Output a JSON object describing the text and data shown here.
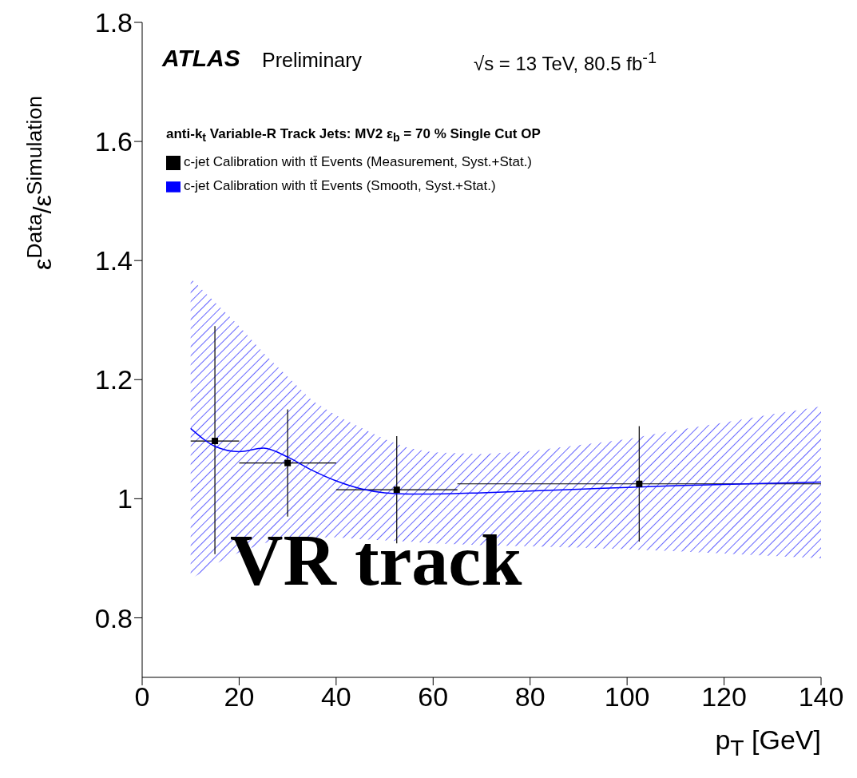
{
  "chart_data": {
    "type": "scatter",
    "xlabel": "p$_{T}$ [GeV]",
    "ylabel": "ε$^{Data}$/ε$^{Simulation}$",
    "legend_title": "anti-k$_{t}$ Variable-R Track Jets: MV2  ε$_{b}$ = 70 % Single Cut OP",
    "legend": "top left",
    "xlim": [
      0,
      140
    ],
    "xticks": [
      0,
      20,
      40,
      60,
      80,
      100,
      120,
      140
    ],
    "ylim": [
      0.7,
      1.8
    ],
    "yticks": [
      0.8,
      1,
      1.2,
      1.4,
      1.6,
      1.8
    ],
    "annotations": [
      "ATLAS",
      "Preliminary",
      "√s = 13 TeV, 80.5 fb$^{-1}$",
      "VR track"
    ],
    "series": [
      {
        "name": "c-jet Calibration with tt̄ Events (Measurement, Syst.+Stat.)",
        "marker": "square",
        "color": "#000000",
        "x": [
          15,
          30,
          52.5,
          102.5
        ],
        "values": [
          1.097,
          1.06,
          1.015,
          1.025
        ],
        "errors": [
          [
            0.907,
            1.29
          ],
          [
            0.97,
            1.15
          ],
          [
            0.925,
            1.105
          ],
          [
            0.928,
            1.122
          ]
        ],
        "xerrors": [
          [
            10,
            20
          ],
          [
            20,
            40
          ],
          [
            40,
            65
          ],
          [
            65,
            140
          ]
        ]
      },
      {
        "name": "c-jet Calibration with tt̄ Events (Smooth, Syst.+Stat.)",
        "type": "line",
        "color": "#0000ff",
        "x": [
          10,
          15,
          20,
          25,
          30,
          35,
          40,
          45,
          50,
          55,
          60,
          70,
          80,
          90,
          100,
          110,
          120,
          130,
          140
        ],
        "values": [
          1.118,
          1.088,
          1.079,
          1.085,
          1.07,
          1.048,
          1.03,
          1.017,
          1.01,
          1.008,
          1.008,
          1.01,
          1.013,
          1.016,
          1.019,
          1.022,
          1.024,
          1.026,
          1.028
        ],
        "upper": [
          1.37,
          1.33,
          1.29,
          1.245,
          1.205,
          1.165,
          1.14,
          1.12,
          1.1,
          1.085,
          1.078,
          1.075,
          1.08,
          1.09,
          1.1,
          1.115,
          1.128,
          1.142,
          1.155
        ],
        "lower": [
          0.865,
          0.89,
          0.91,
          0.925,
          0.935,
          0.935,
          0.935,
          0.932,
          0.93,
          0.928,
          0.925,
          0.922,
          0.92,
          0.918,
          0.915,
          0.912,
          0.908,
          0.904,
          0.9
        ]
      }
    ]
  }
}
